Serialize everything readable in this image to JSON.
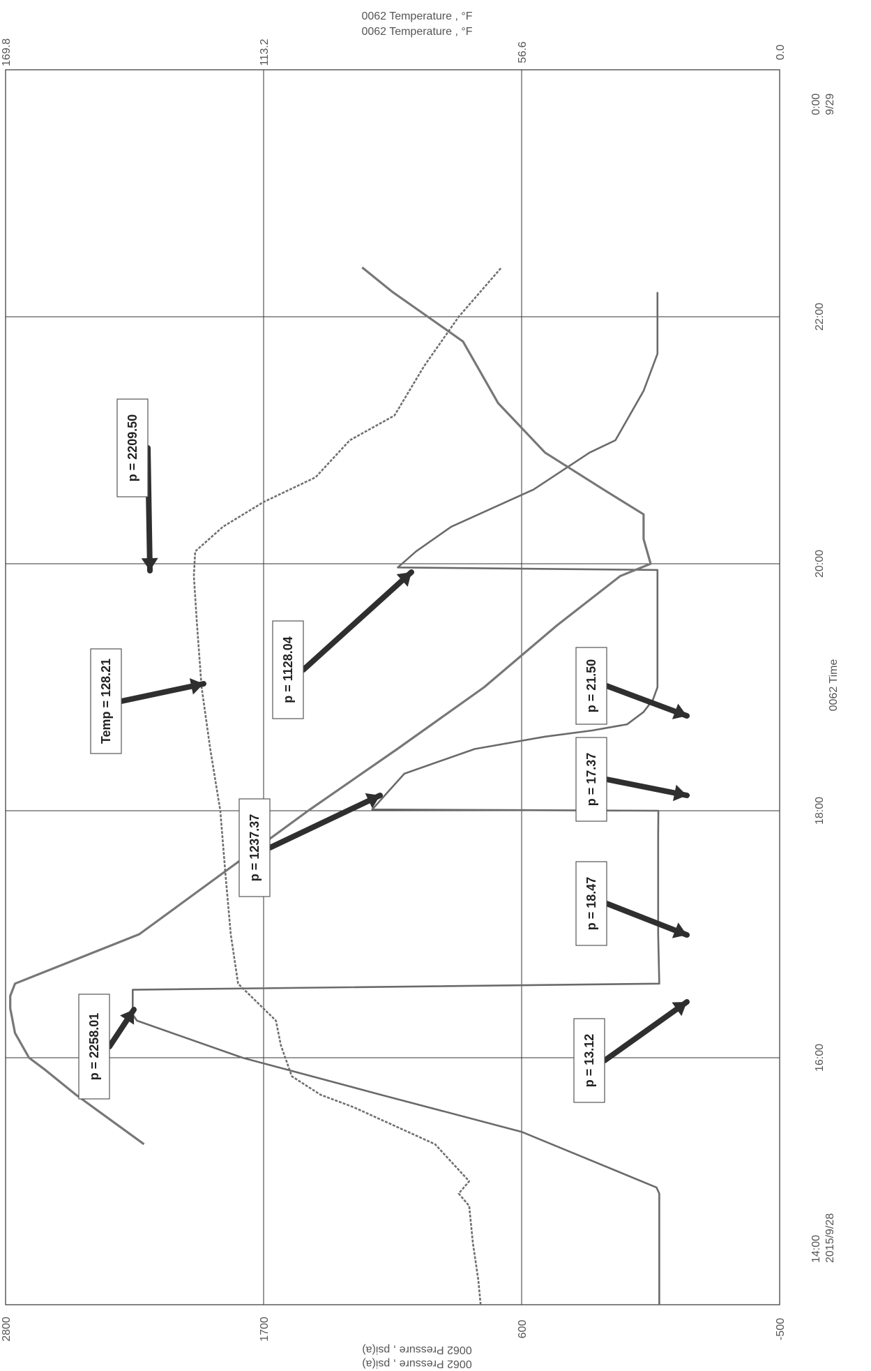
{
  "chart_data": {
    "type": "line",
    "rotation": "figure rotated 90 degrees clockwise",
    "x_axis": {
      "label": "0062 Time",
      "start_label": "14:00",
      "start_date": "2015/9/28",
      "end_label": "0:00",
      "end_date": "9/29",
      "tick_labels": [
        "14:00",
        "16:00",
        "18:00",
        "20:00",
        "22:00",
        "0:00"
      ],
      "range_hours": [
        14,
        24
      ]
    },
    "y_axis_pressure": {
      "label": "0062 Pressure , psi(a)",
      "label_repeat": "0062 Pressure , psi(a)",
      "range": [
        -500,
        2800
      ],
      "tick_labels": [
        "-500",
        "600",
        "1700",
        "2800"
      ],
      "ticks": [
        -500,
        600,
        1700,
        2800
      ]
    },
    "y_axis_temperature": {
      "label": "0062 Temperature , °F",
      "label_repeat": "0062 Temperature , °F",
      "range": [
        0,
        169.8
      ],
      "tick_labels": [
        "0.0",
        "56.6",
        "113.2",
        "169.8"
      ],
      "ticks": [
        0,
        56.6,
        113.2,
        169.8
      ]
    },
    "grid": true,
    "series": [
      {
        "color": "#6a6a6a",
        "x": [
          14.0,
          14.9,
          14.95,
          15.4,
          15.7,
          16.0,
          16.3,
          16.35,
          16.55,
          16.6,
          17.0,
          17.4,
          17.8,
          18.0,
          18.01,
          18.3,
          18.5,
          18.6,
          18.65,
          18.7,
          18.8,
          18.9,
          19.0,
          19.3,
          19.6,
          19.9,
          19.95,
          19.97,
          20.1,
          20.3,
          20.6,
          20.9,
          21.0,
          21.4,
          21.7,
          21.75,
          22.2
        ],
        "y": [
          13,
          13,
          25,
          600,
          1200,
          1790,
          2240,
          2258,
          2258,
          13,
          18,
          18,
          18,
          17,
          1237,
          1100,
          800,
          500,
          300,
          150,
          80,
          40,
          21,
          21,
          21,
          21,
          21,
          1128,
          1050,
          900,
          550,
          310,
          200,
          80,
          21,
          21,
          21
        ]
      },
      {
        "color": "#777777",
        "x": [
          15.3,
          15.7,
          15.9,
          16.0,
          16.2,
          16.4,
          16.5,
          16.6,
          17.0,
          17.5,
          18.0,
          18.5,
          19.0,
          19.5,
          19.9,
          20.0,
          20.2,
          20.4,
          20.6,
          20.9,
          21.3,
          21.8,
          22.0,
          22.2,
          22.4
        ],
        "y": [
          2210,
          2500,
          2630,
          2700,
          2760,
          2780,
          2780,
          2760,
          2230,
          1870,
          1510,
          1130,
          760,
          450,
          180,
          50,
          80,
          80,
          250,
          500,
          700,
          850,
          1000,
          1150,
          1280
        ]
      },
      {
        "color": "#6f6f6f",
        "x": [
          14.0,
          14.2,
          14.5,
          14.8,
          14.9,
          15.0,
          15.3,
          15.6,
          15.7,
          15.85,
          16.1,
          16.3,
          16.6,
          17.0,
          17.5,
          18.0,
          18.5,
          19.0,
          19.5,
          19.9,
          20.1,
          20.3,
          20.5,
          20.7,
          21.0,
          21.2,
          21.6,
          22.0,
          22.4
        ],
        "y": [
          65.6,
          66.1,
          67.3,
          68.1,
          70.4,
          68.1,
          75.6,
          93.5,
          100.7,
          107.0,
          109.4,
          110.5,
          118.8,
          120.4,
          121.6,
          122.7,
          124.9,
          126.8,
          127.8,
          128.5,
          128.2,
          122.1,
          113.2,
          101.8,
          94.3,
          84.5,
          78.0,
          70.4,
          61.0
        ],
        "axis": "temperature"
      }
    ],
    "annotations": [
      {
        "text": "p = 2258.01"
      },
      {
        "text": "p = 13.12"
      },
      {
        "text": "p = 18.47"
      },
      {
        "text": "p = 1237.37"
      },
      {
        "text": "p = 17.37"
      },
      {
        "text": "Temp = 128.21"
      },
      {
        "text": "p = 21.50"
      },
      {
        "text": "p = 1128.04"
      },
      {
        "text": "p = 2209.50"
      }
    ]
  }
}
